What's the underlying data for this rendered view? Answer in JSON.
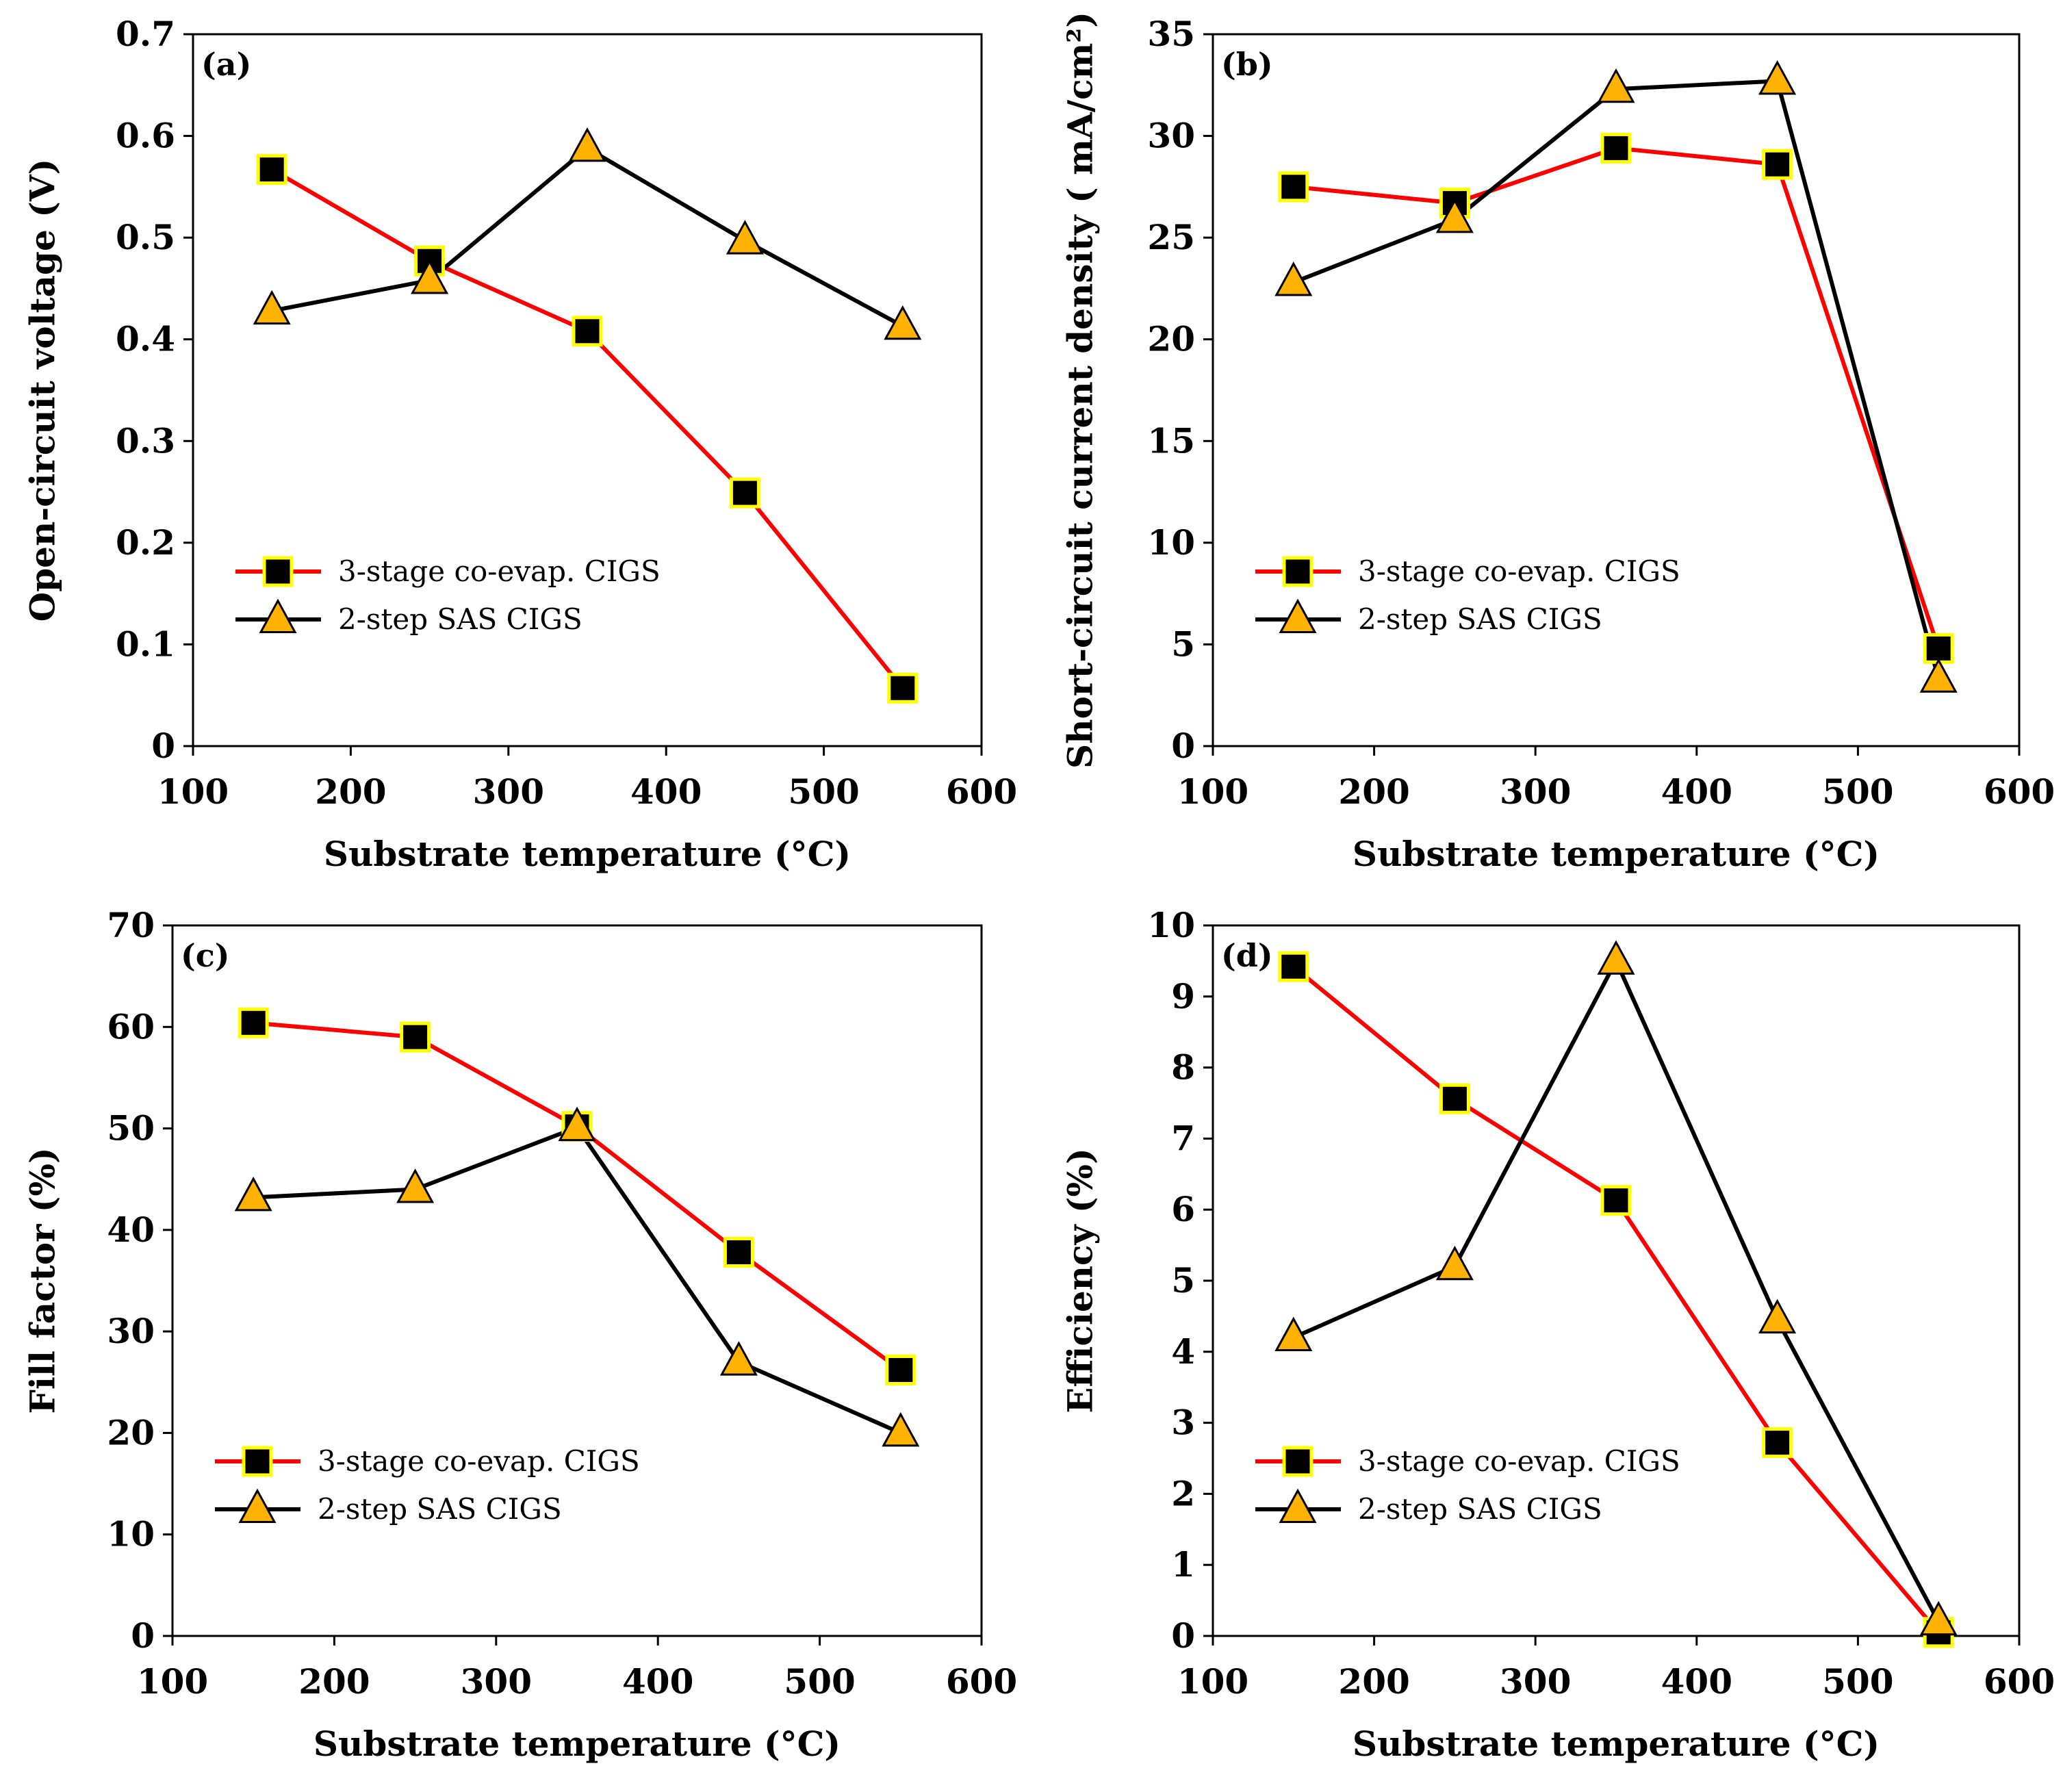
{
  "chart_data": [
    {
      "type": "line",
      "panel": "(a)",
      "title": "",
      "xlabel": "Substrate temperature (°C)",
      "ylabel": "Open-circuit voltage (V)",
      "xlim": [
        100,
        600
      ],
      "ylim": [
        0,
        0.7
      ],
      "xticks": [
        100,
        200,
        300,
        400,
        500,
        600
      ],
      "yticks": [
        0,
        0.1,
        0.2,
        0.3,
        0.4,
        0.5,
        0.6,
        0.7
      ],
      "ytick_labels": [
        "0",
        "0.1",
        "0.2",
        "0.3",
        "0.4",
        "0.5",
        "0.6",
        "0.7"
      ],
      "legend_position": "lower-left",
      "x": [
        150,
        250,
        350,
        450,
        550
      ],
      "series": [
        {
          "name": "3-stage co-evap. CIGS",
          "values": [
            0.567,
            0.477,
            0.408,
            0.249,
            0.057
          ]
        },
        {
          "name": "2-step SAS CIGS",
          "values": [
            0.428,
            0.458,
            0.588,
            0.497,
            0.413
          ]
        }
      ]
    },
    {
      "type": "line",
      "panel": "(b)",
      "title": "",
      "xlabel": "Substrate temperature (°C)",
      "ylabel": "Short-circuit current density ( mA/cm²)",
      "xlim": [
        100,
        600
      ],
      "ylim": [
        0,
        35
      ],
      "xticks": [
        100,
        200,
        300,
        400,
        500,
        600
      ],
      "yticks": [
        0,
        5,
        10,
        15,
        20,
        25,
        30,
        35
      ],
      "ytick_labels": [
        "0",
        "5",
        "10",
        "15",
        "20",
        "25",
        "30",
        "35"
      ],
      "legend_position": "lower-left",
      "x": [
        150,
        250,
        350,
        450,
        550
      ],
      "series": [
        {
          "name": "3-stage co-evap. CIGS",
          "values": [
            27.5,
            26.7,
            29.4,
            28.6,
            4.8
          ]
        },
        {
          "name": "2-step SAS CIGS",
          "values": [
            22.8,
            25.9,
            32.3,
            32.7,
            3.3
          ]
        }
      ]
    },
    {
      "type": "line",
      "panel": "(c)",
      "title": "",
      "xlabel": "Substrate temperature (°C)",
      "ylabel": "Fill factor (%)",
      "xlim": [
        100,
        600
      ],
      "ylim": [
        0,
        70
      ],
      "xticks": [
        100,
        200,
        300,
        400,
        500,
        600
      ],
      "yticks": [
        0,
        10,
        20,
        30,
        40,
        50,
        60,
        70
      ],
      "ytick_labels": [
        "0",
        "10",
        "20",
        "30",
        "40",
        "50",
        "60",
        "70"
      ],
      "legend_position": "lower-left",
      "x": [
        150,
        250,
        350,
        450,
        550
      ],
      "series": [
        {
          "name": "3-stage co-evap. CIGS",
          "values": [
            60.4,
            59.0,
            50.2,
            37.8,
            26.2
          ]
        },
        {
          "name": "2-step SAS CIGS",
          "values": [
            43.2,
            44.0,
            50.1,
            27.0,
            20.0
          ]
        }
      ]
    },
    {
      "type": "line",
      "panel": "(d)",
      "title": "",
      "xlabel": "Substrate temperature (°C)",
      "ylabel": "Efficiency (%)",
      "xlim": [
        100,
        600
      ],
      "ylim": [
        0,
        10
      ],
      "xticks": [
        100,
        200,
        300,
        400,
        500,
        600
      ],
      "yticks": [
        0,
        1,
        2,
        3,
        4,
        5,
        6,
        7,
        8,
        9,
        10
      ],
      "ytick_labels": [
        "0",
        "1",
        "2",
        "3",
        "4",
        "5",
        "6",
        "7",
        "8",
        "9",
        "10"
      ],
      "legend_position": "lower-left",
      "x": [
        150,
        250,
        350,
        450,
        550
      ],
      "series": [
        {
          "name": "3-stage co-evap. CIGS",
          "values": [
            9.42,
            7.56,
            6.13,
            2.72,
            0.05
          ]
        },
        {
          "name": "2-step SAS CIGS",
          "values": [
            4.2,
            5.2,
            9.5,
            4.45,
            0.2
          ]
        }
      ]
    }
  ],
  "style": {
    "series_colors": [
      "#ff0000",
      "#000000"
    ],
    "square_fill": "#000000",
    "square_edge": "#ffff00",
    "triangle_fill": "#ffb300",
    "triangle_edge": "#000000"
  }
}
